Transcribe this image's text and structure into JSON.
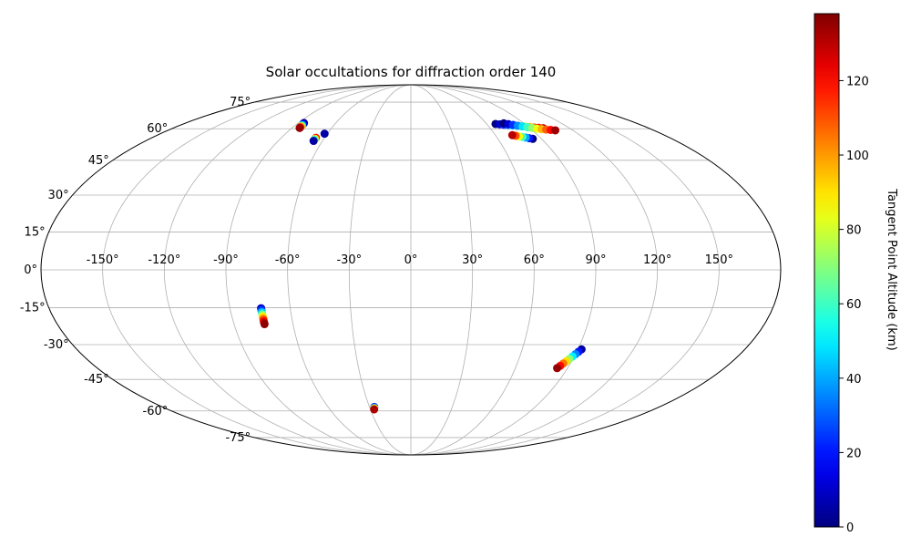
{
  "chart_data": {
    "type": "scatter",
    "projection": "mollweide",
    "title": "Solar occultations for diffraction order 140",
    "lon_tick_labels": [
      "-150°",
      "-120°",
      "-90°",
      "-60°",
      "-30°",
      "0°",
      "30°",
      "60°",
      "90°",
      "120°",
      "150°"
    ],
    "lat_tick_labels": [
      "-75°",
      "-60°",
      "-45°",
      "-30°",
      "-15°",
      "0°",
      "15°",
      "30°",
      "45°",
      "60°",
      "75°"
    ],
    "grid": true,
    "colorbar": {
      "label": "Tangent Point Altitude (km)",
      "colormap": "jet",
      "range": [
        0,
        138
      ],
      "ticks": [
        0,
        20,
        40,
        60,
        80,
        100,
        120
      ],
      "tick_labels": [
        "0",
        "20",
        "40",
        "60",
        "80",
        "100",
        "120"
      ]
    },
    "series": [
      {
        "lon": [
          -85.5,
          -85.3,
          -85.1,
          -84.9,
          -84.7,
          -84.6,
          -84.5,
          -84.4,
          -84.3
        ],
        "lat": [
          63.0,
          62.6,
          62.2,
          61.9,
          61.6,
          61.3,
          61.0,
          60.7,
          60.4
        ],
        "altitude": [
          0,
          10,
          20,
          40,
          60,
          80,
          100,
          120,
          135
        ]
      },
      {
        "lon": [
          -62.0
        ],
        "lat": [
          57.5
        ],
        "altitude": [
          5
        ]
      },
      {
        "lon": [
          -66.0,
          -66.0,
          -66.0,
          -66.0
        ],
        "lat": [
          55.5,
          55.0,
          54.6,
          54.0
        ],
        "altitude": [
          120,
          90,
          60,
          5
        ]
      },
      {
        "lon": [
          -74.5,
          -74.5,
          -74.5,
          -74.5,
          -74.5,
          -74.5,
          -74.5,
          -74.5,
          -74.5
        ],
        "lat": [
          -15.2,
          -16.0,
          -16.8,
          -17.6,
          -18.4,
          -19.2,
          -20.0,
          -20.8,
          -21.6
        ],
        "altitude": [
          10,
          25,
          45,
          65,
          85,
          100,
          115,
          128,
          136
        ]
      },
      {
        "lon": [
          -26.5,
          -26.8,
          -27.2
        ],
        "lat": [
          -58.0,
          -58.6,
          -59.2
        ],
        "altitude": [
          25,
          80,
          132
        ]
      },
      {
        "lon": [
          92.0,
          91.0,
          90.0,
          89.0,
          88.0,
          87.0,
          86.0,
          85.0,
          84.0
        ],
        "lat": [
          -32.0,
          -33.0,
          -34.0,
          -35.0,
          -36.0,
          -37.0,
          -38.0,
          -39.0,
          -40.0
        ],
        "altitude": [
          5,
          20,
          35,
          50,
          70,
          90,
          105,
          120,
          135
        ]
      },
      {
        "lon": [
          67.0,
          70.0,
          73.0,
          76.0,
          79.0,
          82.0,
          85.0,
          88.0,
          91.0,
          94.0,
          97.0,
          100.0
        ],
        "lat": [
          62.5,
          62.3,
          62.1,
          61.9,
          61.7,
          61.5,
          61.3,
          61.1,
          60.9,
          60.7,
          60.5,
          60.3
        ],
        "altitude": [
          0,
          10,
          22,
          34,
          46,
          58,
          70,
          82,
          94,
          106,
          118,
          132
        ]
      },
      {
        "lon": [
          74.0,
          77.0,
          80.0,
          83.0,
          86.0,
          89.0,
          92.0,
          95.0,
          98.0,
          101.0,
          104.0,
          107.0
        ],
        "lat": [
          62.8,
          62.4,
          62.0,
          61.6,
          61.2,
          60.8,
          60.4,
          60.0,
          59.8,
          59.6,
          59.4,
          59.2
        ],
        "altitude": [
          0,
          12,
          24,
          36,
          48,
          60,
          72,
          84,
          96,
          108,
          120,
          134
        ]
      },
      {
        "lon": [
          84.0,
          82.0,
          80.0,
          78.0,
          76.0,
          74.0,
          72.0
        ],
        "lat": [
          55.0,
          55.3,
          55.6,
          55.9,
          56.2,
          56.5,
          56.8
        ],
        "altitude": [
          0,
          20,
          40,
          60,
          85,
          110,
          130
        ]
      }
    ]
  }
}
